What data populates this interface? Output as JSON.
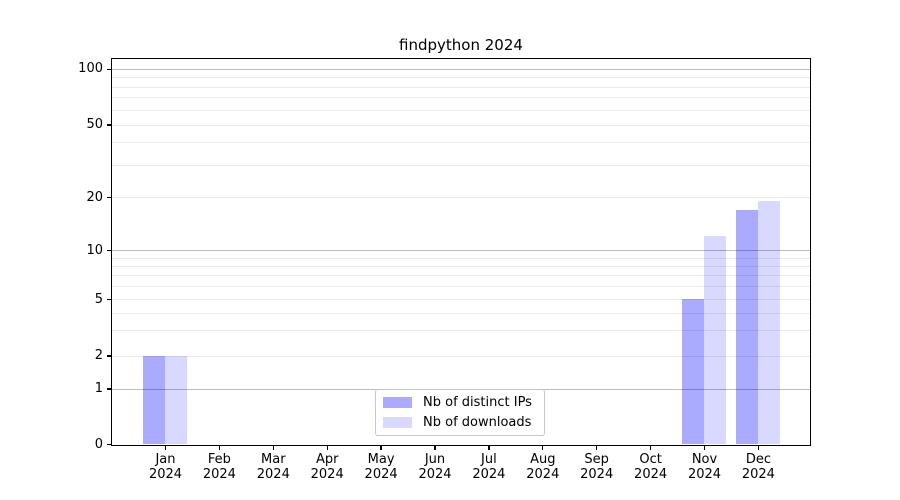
{
  "window": {
    "background": "#ffffff"
  },
  "chart_data": {
    "type": "bar",
    "title": "findpython 2024",
    "categories": [
      "Jan 2024",
      "Feb 2024",
      "Mar 2024",
      "Apr 2024",
      "May 2024",
      "Jun 2024",
      "Jul 2024",
      "Aug 2024",
      "Sep 2024",
      "Oct 2024",
      "Nov 2024",
      "Dec 2024"
    ],
    "series": [
      {
        "name": "Nb of distinct IPs",
        "color": "#aaaaff",
        "values": [
          2,
          0,
          0,
          0,
          0,
          0,
          0,
          0,
          0,
          0,
          5,
          17
        ]
      },
      {
        "name": "Nb of downloads",
        "color": "#d9d9ff",
        "values": [
          2,
          0,
          0,
          0,
          0,
          0,
          0,
          0,
          0,
          0,
          12,
          19
        ]
      }
    ],
    "xlabel": "",
    "ylabel": "",
    "yscale": "symlog",
    "ylim": [
      0,
      120
    ],
    "yticks": [
      0,
      1,
      2,
      5,
      10,
      20,
      50,
      100
    ],
    "minor_yticks": [
      3,
      4,
      6,
      7,
      8,
      9,
      30,
      40,
      60,
      70,
      80,
      90
    ],
    "grid": "horizontal",
    "legend_position": "lower center",
    "colors": {
      "major_grid": "rgba(0,0,0,0.26)",
      "minor_grid": "rgba(0,0,0,0.08)",
      "spine": "#000000",
      "text": "#000000"
    }
  }
}
